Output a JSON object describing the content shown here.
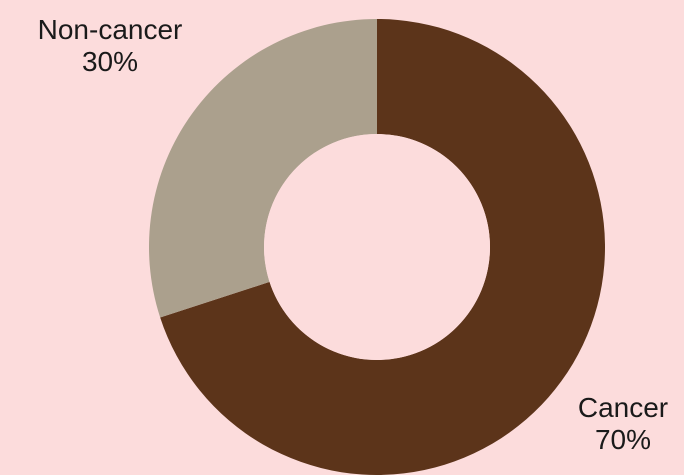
{
  "chart_data": {
    "type": "pie",
    "donut": true,
    "categories": [
      "Cancer",
      "Non-cancer"
    ],
    "values": [
      70,
      30
    ],
    "value_labels": [
      "70%",
      "30%"
    ],
    "colors": [
      "#5c341a",
      "#aba08d"
    ],
    "background": "#fcdcdc",
    "title": "",
    "legend": "none"
  }
}
